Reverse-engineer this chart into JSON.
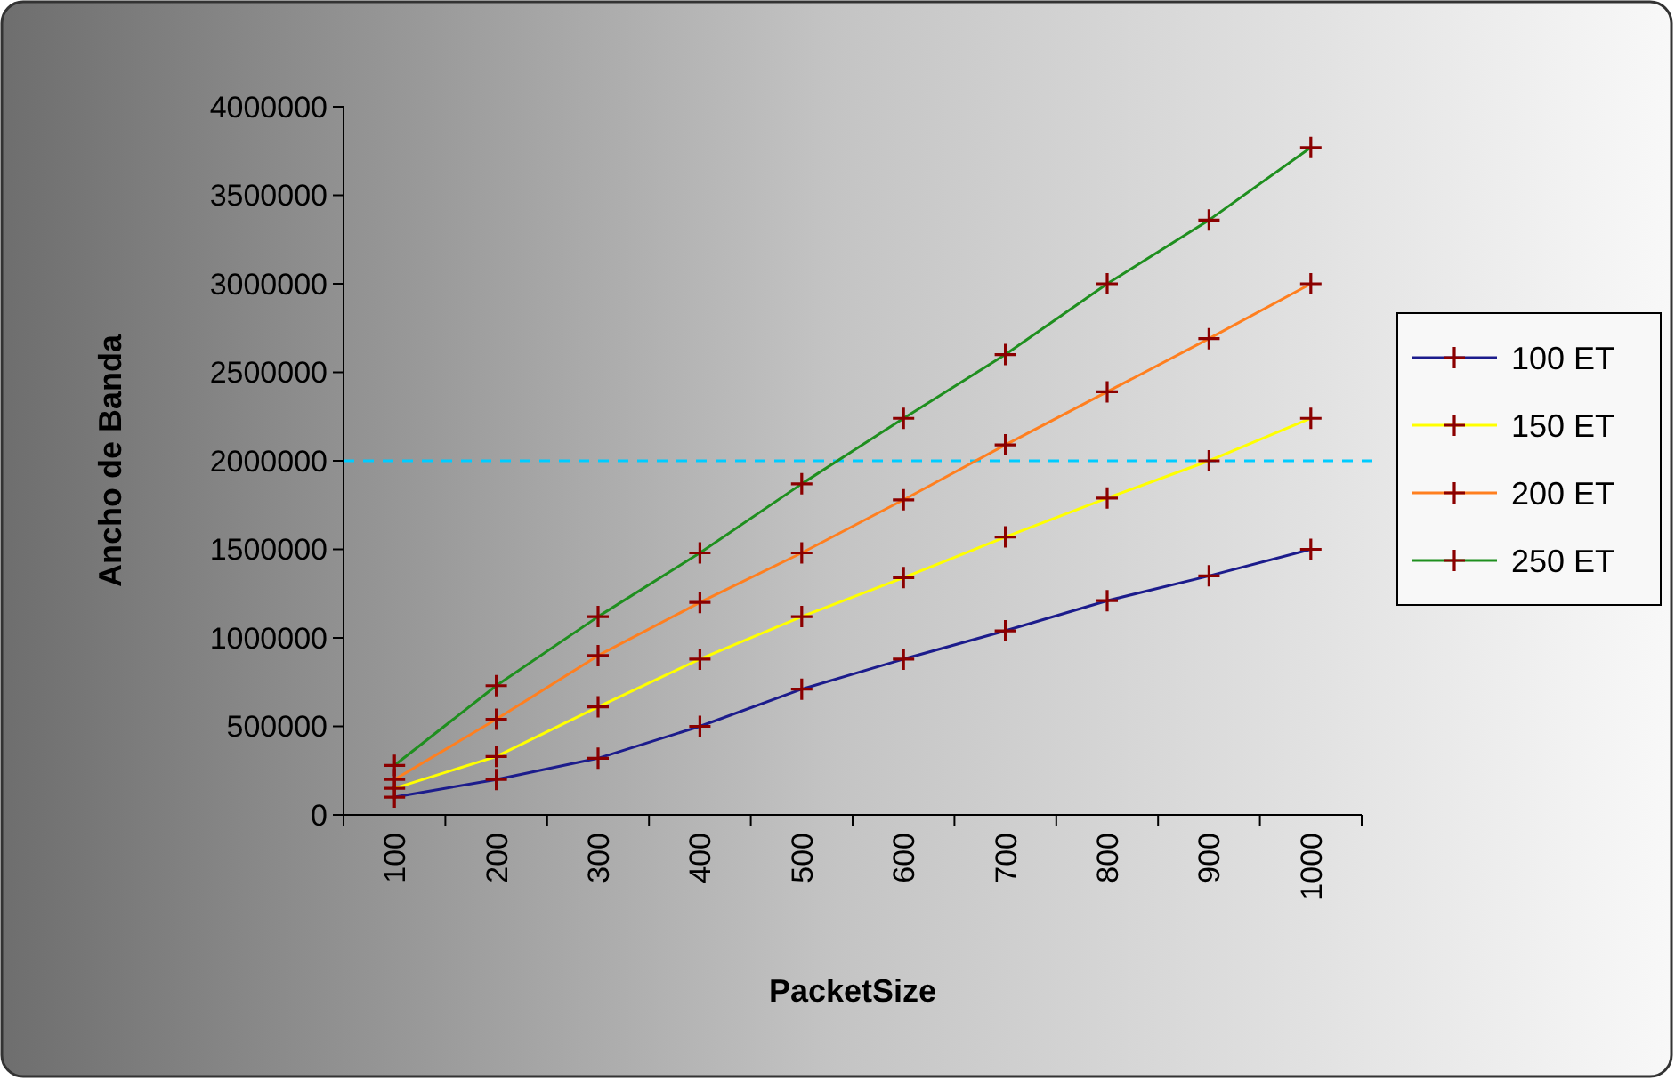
{
  "chart_data": {
    "type": "line",
    "xlabel": "PacketSize",
    "ylabel": "Ancho de Banda",
    "categories": [
      "100",
      "200",
      "300",
      "400",
      "500",
      "600",
      "700",
      "800",
      "900",
      "1000"
    ],
    "series": [
      {
        "name": "100 ET",
        "color": "#1c1c8c",
        "values": [
          100000,
          200000,
          320000,
          500000,
          710000,
          880000,
          1040000,
          1210000,
          1350000,
          1500000
        ]
      },
      {
        "name": "150 ET",
        "color": "#ffff00",
        "values": [
          150000,
          330000,
          610000,
          880000,
          1120000,
          1340000,
          1570000,
          1790000,
          2000000,
          2240000
        ]
      },
      {
        "name": "200 ET",
        "color": "#ff7f1f",
        "values": [
          200000,
          540000,
          900000,
          1200000,
          1480000,
          1780000,
          2090000,
          2390000,
          2690000,
          3000000
        ]
      },
      {
        "name": "250 ET",
        "color": "#1f8f1f",
        "values": [
          280000,
          730000,
          1120000,
          1480000,
          1870000,
          2240000,
          2600000,
          3000000,
          3360000,
          3770000
        ]
      }
    ],
    "ylim": [
      0,
      4000000
    ],
    "yticks": [
      0,
      500000,
      1000000,
      1500000,
      2000000,
      2500000,
      3000000,
      3500000,
      4000000
    ],
    "ref_lines": [
      {
        "axis": "y",
        "value": 2000000,
        "color": "#00ccff",
        "line_style": "dashed"
      }
    ],
    "marker": "cross",
    "line_style": "solid",
    "legend": "right",
    "grid": false
  }
}
